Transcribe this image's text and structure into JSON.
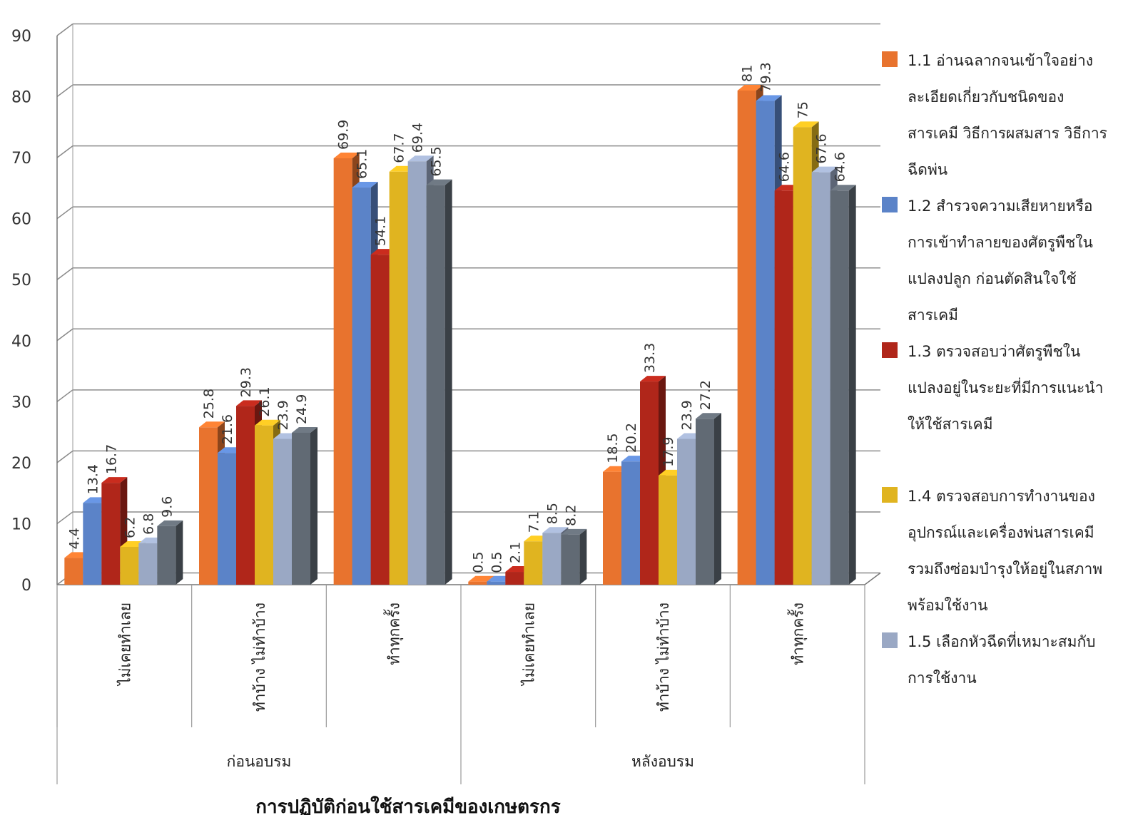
{
  "chart_data": {
    "type": "bar",
    "title": "การปฏิบัติก่อนใช้สารเคมีของเกษตรกร",
    "xlabel": "",
    "ylabel": "",
    "ylim": [
      0,
      90
    ],
    "yticks": [
      0,
      10,
      20,
      30,
      40,
      50,
      60,
      70,
      80,
      90
    ],
    "grid": true,
    "legend_position": "right",
    "groups": [
      {
        "label": "ก่อนอบรม",
        "categories": [
          "ไม่เคยทำเลย",
          "ทำบ้าง ไม่ทำบ้าง",
          "ทำทุกครั้ง"
        ]
      },
      {
        "label": "หลังอบรม",
        "categories": [
          "ไม่เคยทำเลย",
          "ทำบ้าง ไม่ทำบ้าง",
          "ทำทุกครั้ง"
        ]
      }
    ],
    "categories": [
      "ไม่เคยทำเลย",
      "ทำบ้าง ไม่ทำบ้าง",
      "ทำทุกครั้ง",
      "ไม่เคยทำเลย",
      "ทำบ้าง ไม่ทำบ้าง",
      "ทำทุกครั้ง"
    ],
    "series": [
      {
        "name": "1.1 อ่านฉลากจนเข้าใจอย่างละเอียดเกี่ยวกับชนิดของสารเคมี วิธีการผสมสาร วิธีการฉีดพ่น",
        "color": "#E8732E",
        "values": [
          4.4,
          25.8,
          69.9,
          0.5,
          18.5,
          81
        ]
      },
      {
        "name": "1.2 สำรวจความเสียหายหรือการเข้าทำลายของศัตรูพืชในแปลงปลูก ก่อนตัดสินใจใช้สารเคมี",
        "color": "#5B83C8",
        "values": [
          13.4,
          21.6,
          65.1,
          0.5,
          20.2,
          79.3
        ]
      },
      {
        "name": "1.3 ตรวจสอบว่าศัตรูพืชในแปลงอยู่ในระยะที่มีการแนะนำให้ใช้สารเคมี",
        "color": "#B0261A",
        "values": [
          16.7,
          29.3,
          54.1,
          2.1,
          33.3,
          64.6
        ]
      },
      {
        "name": "1.4 ตรวจสอบการทำงานของอุปกรณ์และเครื่องพ่นสารเคมี รวมถึงซ่อมบำรุงให้อยู่ในสภาพพร้อมใช้งาน",
        "color": "#E0B420",
        "values": [
          6.2,
          26.1,
          67.7,
          7.1,
          17.9,
          75
        ]
      },
      {
        "name": "1.5 เลือกหัวฉีดที่เหมาะสมกับการใช้งาน",
        "color": "#9AA8C4",
        "values": [
          6.8,
          23.9,
          69.4,
          8.5,
          23.9,
          67.6
        ]
      },
      {
        "name": "",
        "color": "#616A74",
        "values": [
          9.6,
          24.9,
          65.5,
          8.2,
          27.2,
          64.6
        ]
      }
    ],
    "value_labels": [
      [
        "4.4",
        "25.8",
        "69.9",
        "0.5",
        "18.5",
        "81"
      ],
      [
        "13.4",
        "21.6",
        "65.1",
        "0.5",
        "20.2",
        "79.3"
      ],
      [
        "16.7",
        "29.3",
        "54.1",
        "2.1",
        "33.3",
        "64.6"
      ],
      [
        "6.2",
        "26.1",
        "67.7",
        "7.1",
        "17.9",
        "75"
      ],
      [
        "6.8",
        "23.9",
        "69.4",
        "8.5",
        "23.9",
        "67.6"
      ],
      [
        "9.6",
        "24.9",
        "65.5",
        "8.2",
        "27.2",
        "64.6"
      ]
    ],
    "legend_lines": [
      [
        "1.1 อ่านฉลากจนเข้าใจอย่าง",
        "ละเอียดเกี่ยวกับชนิดของ",
        "สารเคมี วิธีการผสมสาร วิธีการ",
        "ฉีดพ่น"
      ],
      [
        "1.2 สำรวจความเสียหายหรือ",
        "การเข้าทำลายของศัตรูพืชใน",
        "แปลงปลูก ก่อนตัดสินใจใช้",
        "สารเคมี"
      ],
      [
        "1.3 ตรวจสอบว่าศัตรูพืชใน",
        "แปลงอยู่ในระยะที่มีการแนะนำ",
        "ให้ใช้สารเคมี"
      ],
      [
        "1.4 ตรวจสอบการทำงานของ",
        "อุปกรณ์และเครื่องพ่นสารเคมี",
        "รวมถึงซ่อมบำรุงให้อยู่ในสภาพ",
        "พร้อมใช้งาน"
      ],
      [
        "1.5 เลือกหัวฉีดที่เหมาะสมกับ",
        "การใช้งาน"
      ]
    ]
  }
}
